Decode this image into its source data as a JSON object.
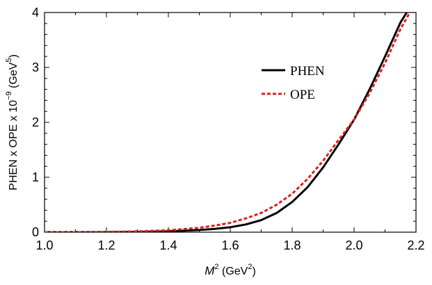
{
  "chart_data": {
    "type": "line",
    "xlabel": {
      "base": "M",
      "sup": "2",
      "unit_open": " (GeV",
      "unit_sup": "2",
      "unit_close": ")"
    },
    "ylabel": {
      "text": "PHEN x OPE x 10",
      "exp": "−9",
      "unit_open": " (GeV",
      "unit_sup": "5",
      "unit_close": ")"
    },
    "xlim": [
      1.0,
      2.2
    ],
    "ylim": [
      0,
      4
    ],
    "x_ticks": [
      "1.0",
      "1.2",
      "1.4",
      "1.6",
      "1.8",
      "2.0",
      "2.2"
    ],
    "x_tick_values": [
      1.0,
      1.2,
      1.4,
      1.6,
      1.8,
      2.0,
      2.2
    ],
    "y_ticks": [
      "0",
      "1",
      "2",
      "3",
      "4"
    ],
    "y_tick_values": [
      0,
      1,
      2,
      3,
      4
    ],
    "grid": false,
    "legend_position": "upper-right",
    "series": [
      {
        "name": "PHEN",
        "color": "#000000",
        "style": "solid",
        "x": [
          1.0,
          1.1,
          1.2,
          1.3,
          1.4,
          1.5,
          1.55,
          1.6,
          1.65,
          1.7,
          1.75,
          1.8,
          1.85,
          1.9,
          1.95,
          2.0,
          2.05,
          2.1,
          2.15,
          2.17
        ],
        "y": [
          0.0,
          0.0,
          0.0,
          0.005,
          0.015,
          0.04,
          0.06,
          0.09,
          0.14,
          0.22,
          0.35,
          0.55,
          0.82,
          1.18,
          1.6,
          2.05,
          2.6,
          3.2,
          3.82,
          4.0
        ]
      },
      {
        "name": "OPE",
        "color": "#e0201b",
        "style": "dashed",
        "x": [
          1.0,
          1.1,
          1.2,
          1.3,
          1.4,
          1.5,
          1.55,
          1.6,
          1.65,
          1.7,
          1.75,
          1.8,
          1.85,
          1.9,
          1.95,
          2.0,
          2.05,
          2.1,
          2.15,
          2.18
        ],
        "y": [
          0.0,
          0.0,
          0.005,
          0.015,
          0.035,
          0.08,
          0.12,
          0.17,
          0.25,
          0.35,
          0.5,
          0.7,
          0.97,
          1.3,
          1.68,
          2.05,
          2.53,
          3.08,
          3.7,
          4.0
        ]
      }
    ]
  }
}
